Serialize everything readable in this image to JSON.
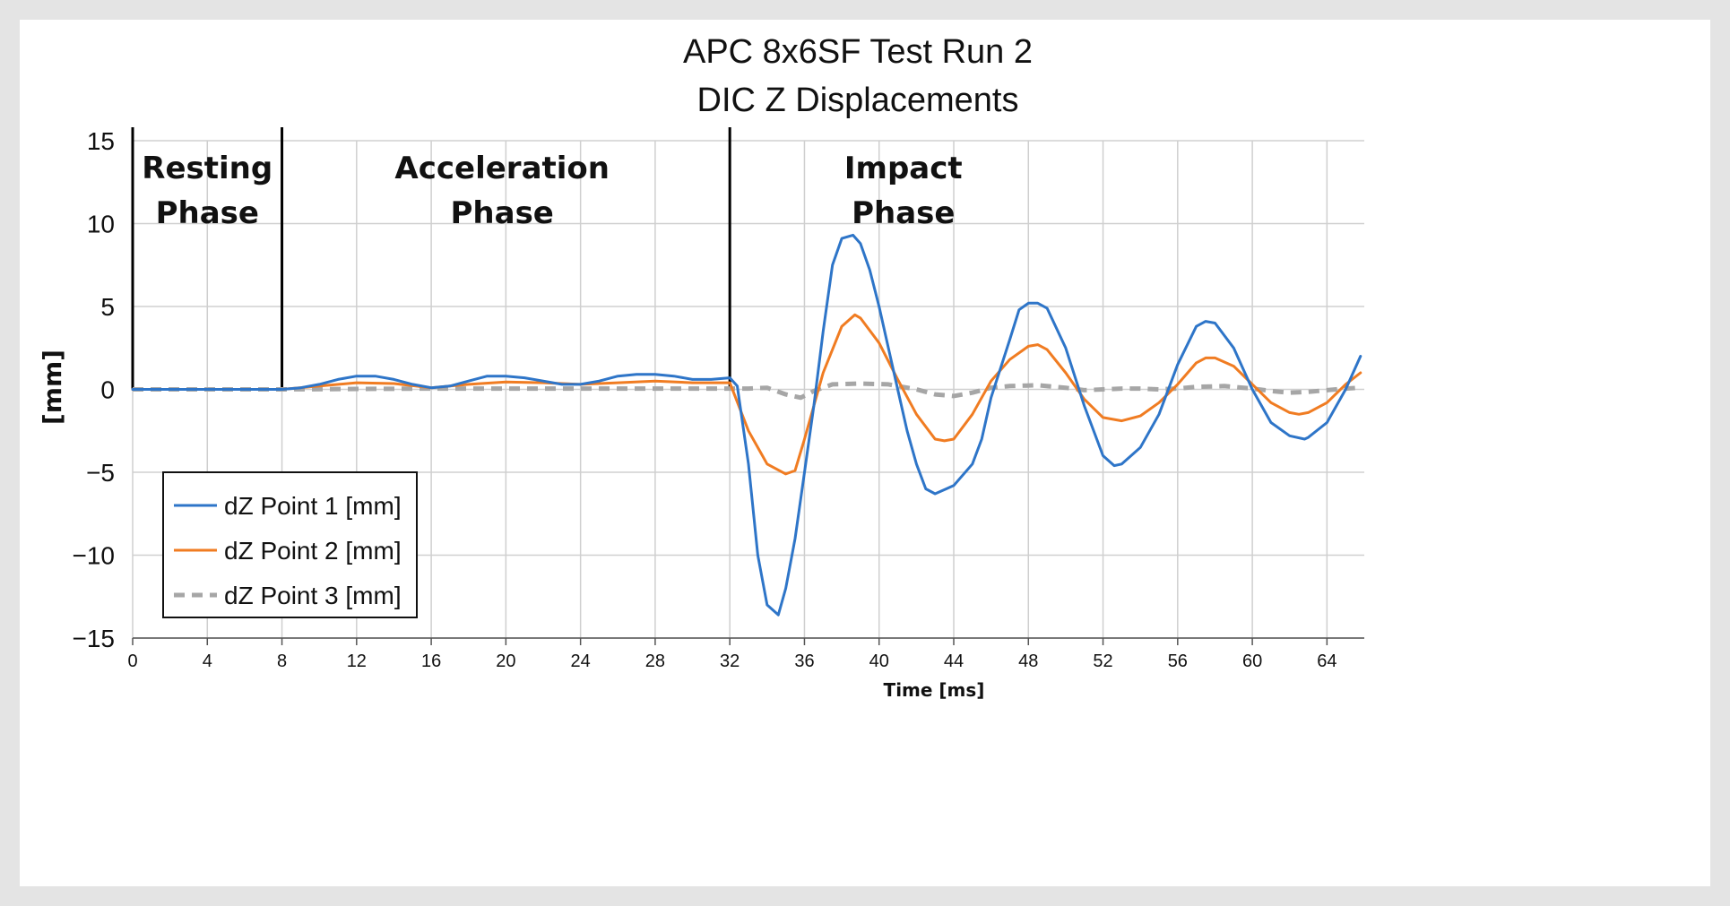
{
  "chart_data": {
    "type": "line",
    "title": [
      "APC 8x6SF Test Run 2",
      "DIC Z Displacements"
    ],
    "xlabel": "Time [ms]",
    "ylabel": "[mm]",
    "xlim": [
      0,
      66
    ],
    "ylim": [
      -15,
      15
    ],
    "xticks": [
      0,
      4,
      8,
      12,
      16,
      20,
      24,
      28,
      32,
      36,
      40,
      44,
      48,
      52,
      56,
      60,
      64
    ],
    "yticks": [
      15,
      10,
      5,
      0,
      -5,
      -10,
      -15
    ],
    "ytick_labels": [
      "15",
      "10",
      "5",
      "0",
      "−5",
      "−10",
      "−15"
    ],
    "grid": true,
    "legend_position": "bottom-left",
    "phases": [
      {
        "boundary": 0,
        "label": [
          "Resting",
          "Phase"
        ],
        "center": 4
      },
      {
        "boundary": 8,
        "label": [
          "Acceleration",
          "Phase"
        ],
        "center": 19.8
      },
      {
        "boundary": 32,
        "label": [
          "Impact",
          "Phase"
        ],
        "center": 41.3
      }
    ],
    "series": [
      {
        "name": "dZ Point 1 [mm]",
        "color": "#2e75c8",
        "dash": "solid",
        "x": [
          0,
          8,
          9,
          10,
          11,
          12,
          13,
          14,
          15,
          16,
          17,
          18,
          19,
          20,
          21,
          22,
          23,
          24,
          25,
          26,
          27,
          28,
          29,
          30,
          31,
          32,
          32.4,
          33,
          33.5,
          34,
          34.6,
          35,
          35.5,
          36,
          36.5,
          37,
          37.5,
          38,
          38.6,
          39,
          39.5,
          40,
          40.5,
          41,
          41.5,
          42,
          42.5,
          43,
          43.6,
          44,
          45,
          45.5,
          46,
          47,
          47.5,
          48,
          48.5,
          49,
          50,
          51,
          52,
          52.6,
          53,
          54,
          55,
          56,
          57,
          57.5,
          58,
          59,
          60,
          61,
          62,
          62.8,
          63,
          64,
          65,
          65.8
        ],
        "y": [
          0,
          0,
          0.1,
          0.3,
          0.6,
          0.8,
          0.8,
          0.6,
          0.3,
          0.1,
          0.2,
          0.5,
          0.8,
          0.8,
          0.7,
          0.5,
          0.3,
          0.3,
          0.5,
          0.8,
          0.9,
          0.9,
          0.8,
          0.6,
          0.6,
          0.7,
          0.2,
          -4.5,
          -10,
          -13,
          -13.6,
          -12,
          -9,
          -5,
          -1,
          3.5,
          7.5,
          9.1,
          9.3,
          8.8,
          7.2,
          5,
          2.5,
          0,
          -2.5,
          -4.5,
          -6,
          -6.3,
          -6,
          -5.8,
          -4.5,
          -3,
          -0.5,
          3,
          4.8,
          5.2,
          5.2,
          4.9,
          2.5,
          -1,
          -4,
          -4.6,
          -4.5,
          -3.5,
          -1.5,
          1.5,
          3.8,
          4.1,
          4,
          2.5,
          0,
          -2,
          -2.8,
          -3,
          -2.9,
          -2,
          0,
          2
        ],
        "width": 3
      },
      {
        "name": "dZ Point 2 [mm]",
        "color": "#f07c22",
        "dash": "solid",
        "x": [
          0,
          8,
          10,
          12,
          14,
          16,
          18,
          20,
          22,
          24,
          26,
          28,
          30,
          32,
          33,
          34,
          35,
          35.5,
          36,
          37,
          38,
          38.7,
          39,
          40,
          41,
          42,
          43,
          43.5,
          44,
          45,
          46,
          47,
          48,
          48.5,
          49,
          50,
          51,
          52,
          53,
          54,
          55,
          56,
          57,
          57.5,
          58,
          59,
          60,
          61,
          62,
          62.5,
          63,
          64,
          65,
          65.8
        ],
        "y": [
          0,
          0,
          0.2,
          0.4,
          0.35,
          0.1,
          0.3,
          0.45,
          0.4,
          0.3,
          0.4,
          0.5,
          0.4,
          0.4,
          -2.5,
          -4.5,
          -5.1,
          -4.9,
          -3,
          1,
          3.8,
          4.5,
          4.3,
          2.8,
          0.6,
          -1.5,
          -3,
          -3.1,
          -3,
          -1.5,
          0.5,
          1.8,
          2.6,
          2.7,
          2.4,
          1,
          -0.6,
          -1.7,
          -1.9,
          -1.6,
          -0.8,
          0.3,
          1.6,
          1.9,
          1.9,
          1.4,
          0.3,
          -0.8,
          -1.4,
          -1.5,
          -1.4,
          -0.8,
          0.3,
          1
        ],
        "width": 3
      },
      {
        "name": "dZ Point 3 [mm]",
        "color": "#a6a6a6",
        "dash": "dashed",
        "x": [
          0,
          8,
          16,
          24,
          32,
          33,
          34,
          35,
          35.8,
          36.5,
          37.5,
          39,
          40.5,
          42,
          43,
          44,
          45,
          46,
          47,
          48.5,
          50,
          51,
          52,
          53,
          54,
          55,
          56,
          57,
          58.5,
          60,
          61,
          62,
          63,
          64,
          65,
          65.8
        ],
        "y": [
          0,
          0,
          0.05,
          0.05,
          0.05,
          0.05,
          0.1,
          -0.3,
          -0.5,
          -0.1,
          0.3,
          0.35,
          0.3,
          0,
          -0.3,
          -0.4,
          -0.2,
          0.1,
          0.2,
          0.25,
          0.1,
          -0.05,
          0,
          0.05,
          0.05,
          0,
          0.05,
          0.15,
          0.2,
          0.05,
          -0.1,
          -0.2,
          -0.15,
          -0.05,
          0.05,
          0.1
        ],
        "width": 5
      }
    ]
  }
}
